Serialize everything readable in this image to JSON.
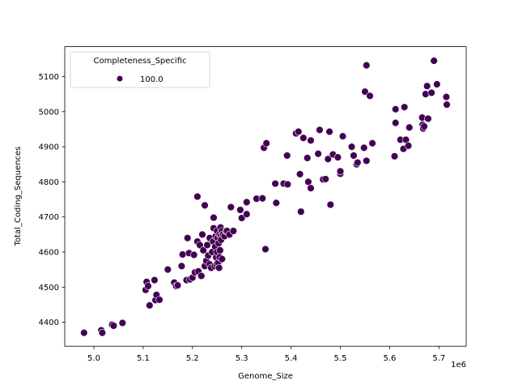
{
  "chart_data": {
    "type": "scatter",
    "title": "",
    "xlabel": "Genome_Size",
    "ylabel": "Total_Coding_Sequences",
    "x_offset_label": "1e6",
    "xlim": [
      4.945,
      5.755
    ],
    "ylim": [
      4335,
      5155
    ],
    "x_ticks": [
      5.0,
      5.1,
      5.2,
      5.3,
      5.4,
      5.5,
      5.6,
      5.7
    ],
    "x_tick_labels": [
      "5.0",
      "5.1",
      "5.2",
      "5.3",
      "5.4",
      "5.5",
      "5.6",
      "5.7"
    ],
    "y_ticks": [
      4400,
      4500,
      4600,
      4700,
      4800,
      4900,
      5000,
      5100
    ],
    "y_tick_labels": [
      "4400",
      "4500",
      "4600",
      "4700",
      "4800",
      "4900",
      "5000",
      "5100"
    ],
    "grid": false,
    "legend": {
      "title": "Completeness_Specific",
      "entries": [
        {
          "label": "100.0",
          "color": "#440154"
        }
      ],
      "position": "upper left"
    },
    "marker_color": "#440154",
    "series": [
      {
        "name": "100.0",
        "points": [
          [
            4.98,
            4370
          ],
          [
            5.015,
            4377
          ],
          [
            5.017,
            4370
          ],
          [
            5.037,
            4393
          ],
          [
            5.04,
            4390
          ],
          [
            5.058,
            4398
          ],
          [
            5.105,
            4492
          ],
          [
            5.107,
            4515
          ],
          [
            5.11,
            4503
          ],
          [
            5.113,
            4448
          ],
          [
            5.123,
            4520
          ],
          [
            5.125,
            4463
          ],
          [
            5.127,
            4478
          ],
          [
            5.133,
            4464
          ],
          [
            5.15,
            4550
          ],
          [
            5.163,
            4513
          ],
          [
            5.167,
            4503
          ],
          [
            5.17,
            4505
          ],
          [
            5.178,
            4560
          ],
          [
            5.18,
            4593
          ],
          [
            5.188,
            4520
          ],
          [
            5.19,
            4640
          ],
          [
            5.193,
            4597
          ],
          [
            5.195,
            4522
          ],
          [
            5.2,
            4527
          ],
          [
            5.203,
            4592
          ],
          [
            5.205,
            4542
          ],
          [
            5.21,
            4630
          ],
          [
            5.212,
            4545
          ],
          [
            5.215,
            4620
          ],
          [
            5.218,
            4532
          ],
          [
            5.22,
            4650
          ],
          [
            5.222,
            4605
          ],
          [
            5.225,
            4560
          ],
          [
            5.228,
            4575
          ],
          [
            5.23,
            4620
          ],
          [
            5.232,
            4590
          ],
          [
            5.235,
            4640
          ],
          [
            5.235,
            4565
          ],
          [
            5.238,
            4555
          ],
          [
            5.24,
            4600
          ],
          [
            5.242,
            4630
          ],
          [
            5.243,
            4668
          ],
          [
            5.245,
            4560
          ],
          [
            5.246,
            4615
          ],
          [
            5.247,
            4645
          ],
          [
            5.248,
            4585
          ],
          [
            5.249,
            4565
          ],
          [
            5.25,
            4660
          ],
          [
            5.25,
            4600
          ],
          [
            5.251,
            4640
          ],
          [
            5.252,
            4570
          ],
          [
            5.253,
            4625
          ],
          [
            5.254,
            4555
          ],
          [
            5.255,
            4650
          ],
          [
            5.255,
            4585
          ],
          [
            5.256,
            4605
          ],
          [
            5.257,
            4670
          ],
          [
            5.258,
            4645
          ],
          [
            5.258,
            4635
          ],
          [
            5.26,
            4580
          ],
          [
            5.26,
            4660
          ],
          [
            5.262,
            4650
          ],
          [
            5.265,
            4645
          ],
          [
            5.268,
            4660
          ],
          [
            5.27,
            4660
          ],
          [
            5.275,
            4650
          ],
          [
            5.278,
            4728
          ],
          [
            5.283,
            4660
          ],
          [
            5.21,
            4758
          ],
          [
            5.225,
            4733
          ],
          [
            5.243,
            4698
          ],
          [
            5.297,
            4720
          ],
          [
            5.3,
            4697
          ],
          [
            5.31,
            4742
          ],
          [
            5.31,
            4708
          ],
          [
            5.33,
            4752
          ],
          [
            5.342,
            4753
          ],
          [
            5.345,
            4897
          ],
          [
            5.35,
            4910
          ],
          [
            5.348,
            4608
          ],
          [
            5.368,
            4795
          ],
          [
            5.37,
            4740
          ],
          [
            5.385,
            4795
          ],
          [
            5.392,
            4875
          ],
          [
            5.393,
            4793
          ],
          [
            5.41,
            4938
          ],
          [
            5.415,
            4943
          ],
          [
            5.418,
            4822
          ],
          [
            5.42,
            4715
          ],
          [
            5.425,
            4925
          ],
          [
            5.433,
            4868
          ],
          [
            5.435,
            4800
          ],
          [
            5.44,
            4918
          ],
          [
            5.44,
            4782
          ],
          [
            5.455,
            4880
          ],
          [
            5.458,
            4948
          ],
          [
            5.465,
            4807
          ],
          [
            5.47,
            4808
          ],
          [
            5.475,
            4865
          ],
          [
            5.478,
            4943
          ],
          [
            5.48,
            4735
          ],
          [
            5.485,
            4878
          ],
          [
            5.495,
            4870
          ],
          [
            5.5,
            4823
          ],
          [
            5.5,
            4830
          ],
          [
            5.505,
            4930
          ],
          [
            5.523,
            4900
          ],
          [
            5.527,
            4875
          ],
          [
            5.532,
            4850
          ],
          [
            5.533,
            4850
          ],
          [
            5.535,
            4855
          ],
          [
            5.548,
            4897
          ],
          [
            5.553,
            4860
          ],
          [
            5.55,
            5057
          ],
          [
            5.553,
            5132
          ],
          [
            5.56,
            5045
          ],
          [
            5.565,
            4910
          ],
          [
            5.61,
            4873
          ],
          [
            5.612,
            4968
          ],
          [
            5.612,
            5007
          ],
          [
            5.622,
            4920
          ],
          [
            5.628,
            4894
          ],
          [
            5.63,
            5013
          ],
          [
            5.633,
            4920
          ],
          [
            5.638,
            4903
          ],
          [
            5.64,
            4955
          ],
          [
            5.666,
            4983
          ],
          [
            5.667,
            4963
          ],
          [
            5.668,
            4952
          ],
          [
            5.67,
            4958
          ],
          [
            5.673,
            5050
          ],
          [
            5.676,
            5073
          ],
          [
            5.678,
            4980
          ],
          [
            5.685,
            5054
          ],
          [
            5.69,
            5145
          ],
          [
            5.696,
            5078
          ],
          [
            5.715,
            5042
          ],
          [
            5.716,
            5020
          ]
        ]
      }
    ]
  }
}
